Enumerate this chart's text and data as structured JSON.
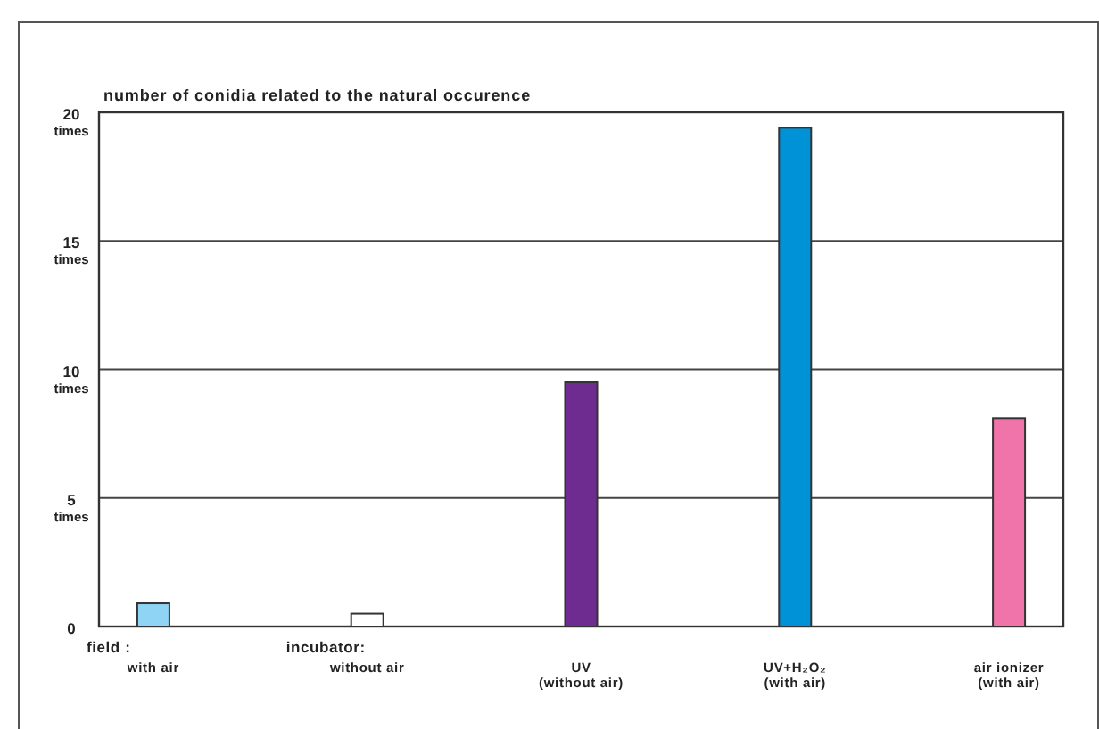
{
  "chart_data": {
    "type": "bar",
    "title": "number of conidia related to the natural occurence",
    "categories": [
      "with air",
      "without air",
      "UV\n(without air)",
      "UV+H₂O₂\n(with air)",
      "air ionizer\n(with air)"
    ],
    "values": [
      0.9,
      0.5,
      9.5,
      19.4,
      8.1
    ],
    "colors": [
      "#8fd4f5",
      "#ffffff",
      "#6e2b90",
      "#0092d6",
      "#f073a9"
    ],
    "ylim": [
      0,
      20
    ],
    "yticks": [
      0,
      {
        "value": 5,
        "label": "5\ntimes"
      },
      {
        "value": 10,
        "label": "10\ntimes"
      },
      {
        "value": 15,
        "label": "15\ntimes"
      },
      {
        "value": 20,
        "label": "20\ntimes"
      }
    ],
    "grid": "y",
    "annotations": [
      "field :",
      "incubator:"
    ]
  }
}
